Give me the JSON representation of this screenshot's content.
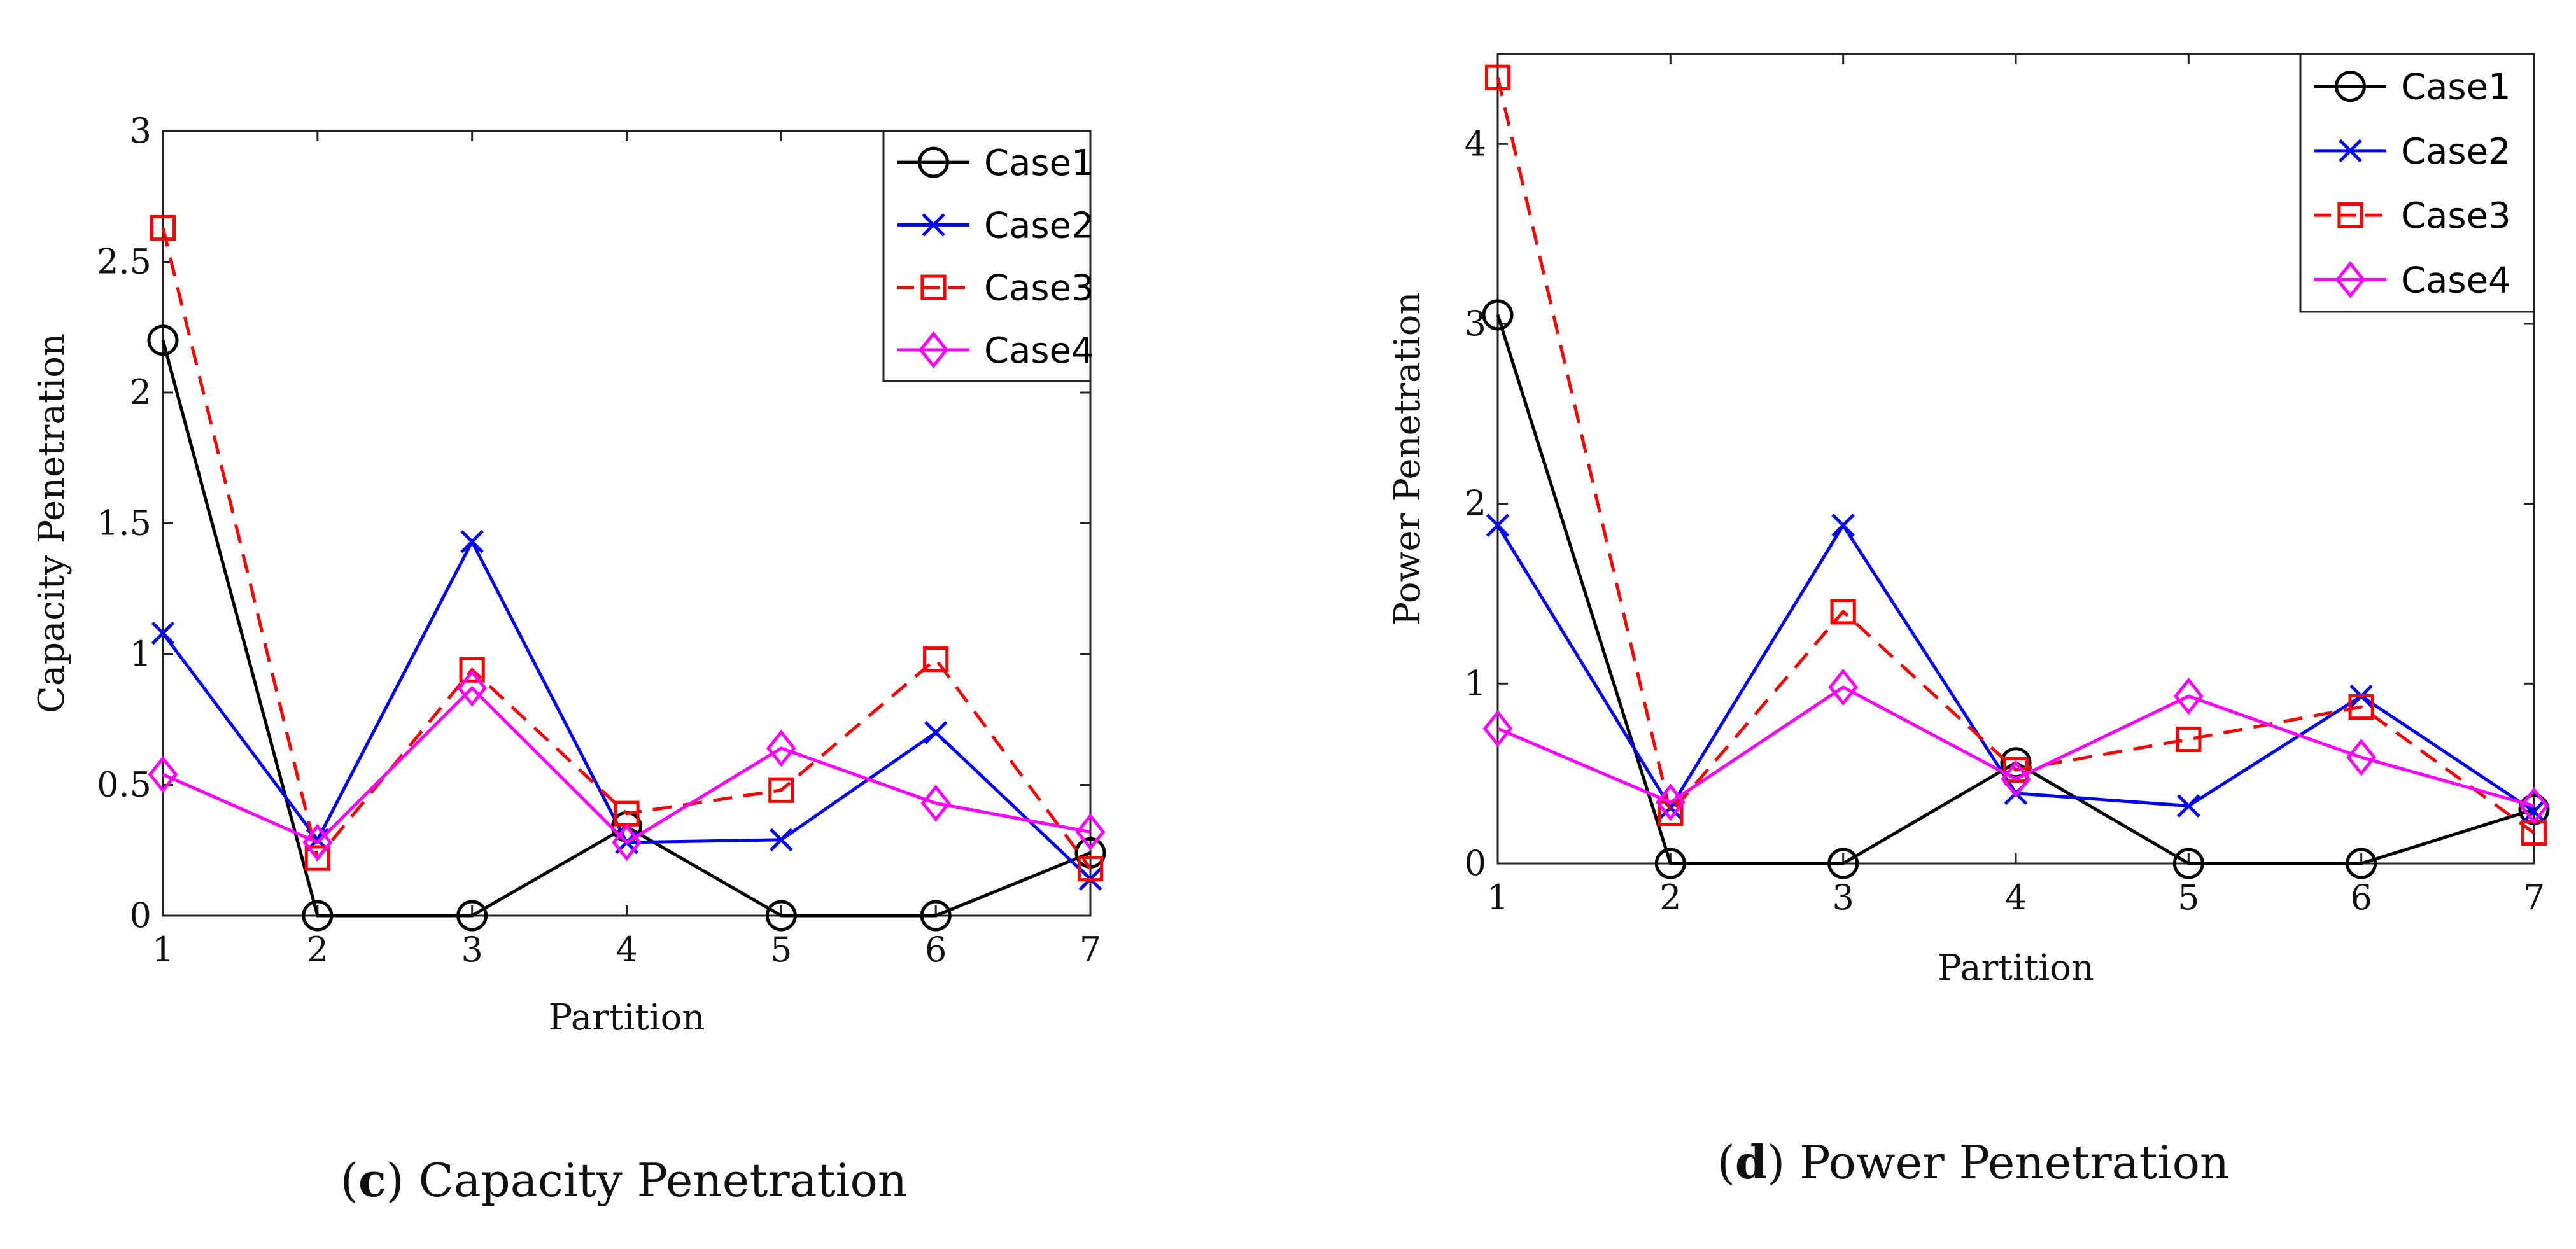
{
  "chart_data": [
    {
      "type": "line",
      "caption_letter": "c",
      "caption_text": "Capacity Penetration",
      "xlabel": "Partition",
      "ylabel": "Capacity Penetration",
      "x": [
        1,
        2,
        3,
        4,
        5,
        6,
        7
      ],
      "xlim": [
        1,
        7
      ],
      "ylim": [
        0,
        3
      ],
      "xticks": [
        "1",
        "2",
        "3",
        "4",
        "5",
        "6",
        "7"
      ],
      "yticks": [
        0,
        0.5,
        1,
        1.5,
        2,
        2.5,
        3
      ],
      "ytick_labels": [
        "0",
        "0.5",
        "1",
        "1.5",
        "2",
        "2.5",
        "3"
      ],
      "legend_position": "top-right",
      "series": [
        {
          "name": "Case1",
          "values": [
            2.2,
            0.0,
            0.0,
            0.34,
            0.0,
            0.0,
            0.24
          ],
          "color": "#000000",
          "marker": "circle",
          "dash": "solid"
        },
        {
          "name": "Case2",
          "values": [
            1.08,
            0.29,
            1.43,
            0.28,
            0.29,
            0.7,
            0.14
          ],
          "color": "#0000ff",
          "marker": "x",
          "dash": "solid"
        },
        {
          "name": "Case3",
          "values": [
            2.63,
            0.22,
            0.94,
            0.39,
            0.48,
            0.98,
            0.18
          ],
          "color": "#ff0000",
          "marker": "square",
          "dash": "dashed"
        },
        {
          "name": "Case4",
          "values": [
            0.54,
            0.28,
            0.87,
            0.28,
            0.64,
            0.43,
            0.32
          ],
          "color": "#ff00ff",
          "marker": "diamond",
          "dash": "solid"
        }
      ]
    },
    {
      "type": "line",
      "caption_letter": "d",
      "caption_text": "Power Penetration",
      "xlabel": "Partition",
      "ylabel": "Power Penetration",
      "x": [
        1,
        2,
        3,
        4,
        5,
        6,
        7
      ],
      "xlim": [
        1,
        7
      ],
      "ylim": [
        0,
        4.5
      ],
      "xticks": [
        "1",
        "2",
        "3",
        "4",
        "5",
        "6",
        "7"
      ],
      "yticks": [
        0,
        1,
        2,
        3,
        4
      ],
      "ytick_labels": [
        "0",
        "1",
        "2",
        "3",
        "4"
      ],
      "legend_position": "top-right",
      "series": [
        {
          "name": "Case1",
          "values": [
            3.05,
            0.0,
            0.0,
            0.56,
            0.0,
            0.0,
            0.3
          ],
          "color": "#000000",
          "marker": "circle",
          "dash": "solid"
        },
        {
          "name": "Case2",
          "values": [
            1.88,
            0.31,
            1.88,
            0.39,
            0.32,
            0.93,
            0.29
          ],
          "color": "#0000ff",
          "marker": "x",
          "dash": "solid"
        },
        {
          "name": "Case3",
          "values": [
            4.37,
            0.28,
            1.4,
            0.52,
            0.69,
            0.87,
            0.17
          ],
          "color": "#ff0000",
          "marker": "square",
          "dash": "dashed"
        },
        {
          "name": "Case4",
          "values": [
            0.75,
            0.34,
            0.98,
            0.47,
            0.93,
            0.59,
            0.32
          ],
          "color": "#ff00ff",
          "marker": "diamond",
          "dash": "solid"
        }
      ]
    }
  ]
}
